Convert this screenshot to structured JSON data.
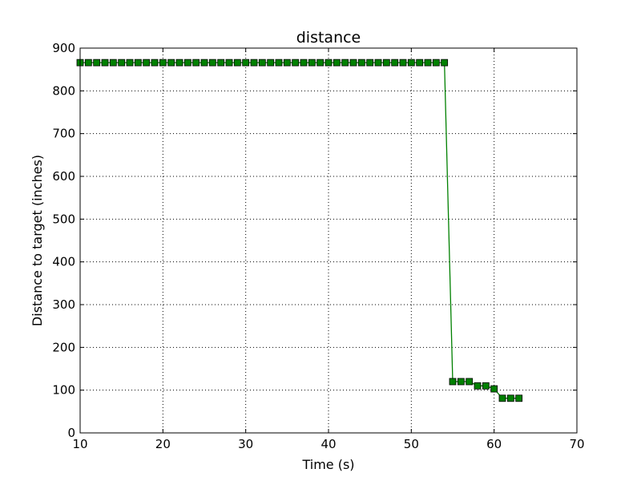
{
  "chart_data": {
    "type": "line",
    "title": "distance",
    "xlabel": "Time (s)",
    "ylabel": "Distance to target (inches)",
    "xlim": [
      10,
      70
    ],
    "ylim": [
      0,
      900
    ],
    "xticks": [
      10,
      20,
      30,
      40,
      50,
      60,
      70
    ],
    "yticks": [
      0,
      100,
      200,
      300,
      400,
      500,
      600,
      700,
      800,
      900
    ],
    "grid": true,
    "series": [
      {
        "color": "#008000",
        "marker": "square",
        "x": [
          10,
          11,
          12,
          13,
          14,
          15,
          16,
          17,
          18,
          19,
          20,
          21,
          22,
          23,
          24,
          25,
          26,
          27,
          28,
          29,
          30,
          31,
          32,
          33,
          34,
          35,
          36,
          37,
          38,
          39,
          40,
          41,
          42,
          43,
          44,
          45,
          46,
          47,
          48,
          49,
          50,
          51,
          52,
          53,
          54,
          55,
          56,
          57,
          58,
          59,
          60,
          61,
          62,
          63
        ],
        "y": [
          866,
          866,
          866,
          866,
          866,
          866,
          866,
          866,
          866,
          866,
          866,
          866,
          866,
          866,
          866,
          866,
          866,
          866,
          866,
          866,
          866,
          866,
          866,
          866,
          866,
          866,
          866,
          866,
          866,
          866,
          866,
          866,
          866,
          866,
          866,
          866,
          866,
          866,
          866,
          866,
          866,
          866,
          866,
          866,
          866,
          120,
          120,
          120,
          110,
          110,
          103,
          81,
          81,
          81
        ]
      }
    ]
  }
}
